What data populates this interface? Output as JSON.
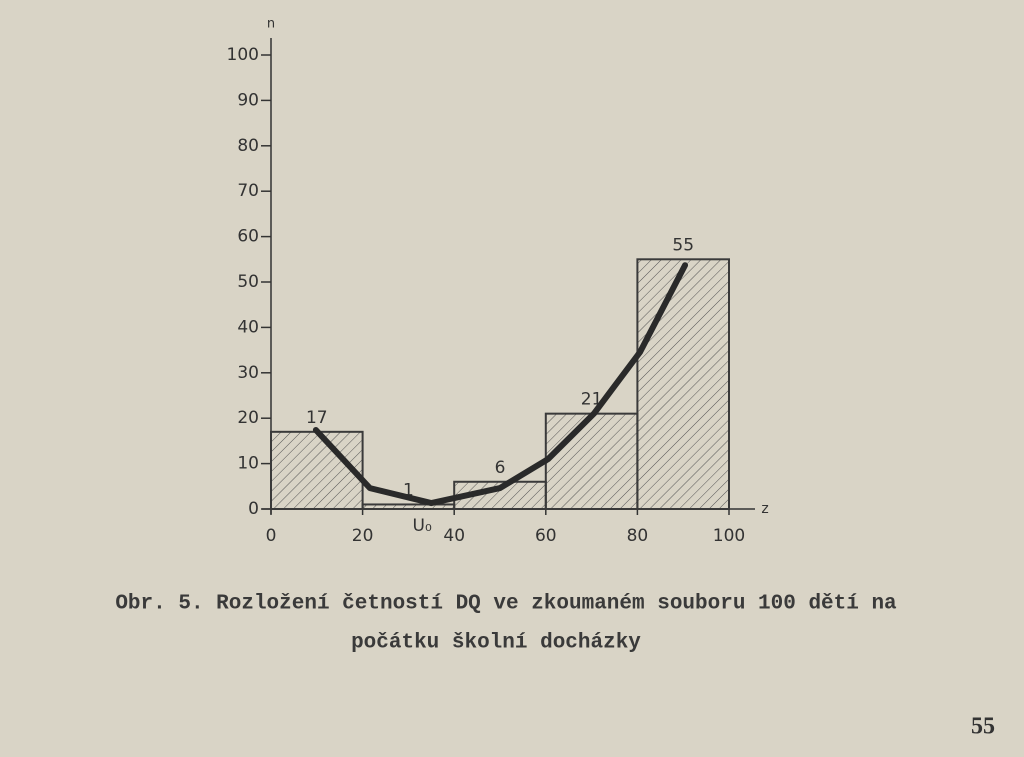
{
  "chart_data": {
    "type": "histogram",
    "y_label": "n",
    "x_label": "z",
    "bins": [
      0,
      20,
      40,
      60,
      80,
      100
    ],
    "values": [
      17,
      1,
      6,
      21,
      55
    ],
    "xlim": [
      0,
      100
    ],
    "xticks": [
      0,
      20,
      40,
      60,
      80,
      100
    ],
    "ylim": [
      0,
      100
    ],
    "yticks": [
      0,
      10,
      20,
      30,
      40,
      50,
      60,
      70,
      80,
      90,
      100
    ],
    "annotation": "U₀",
    "annotation_x": 33,
    "curve": {
      "x": [
        9.8,
        21.6,
        35,
        50,
        60.5,
        70.5,
        80.6,
        90.4
      ],
      "y": [
        17.4,
        4.6,
        1.3,
        4.6,
        11,
        21,
        34.6,
        53.7
      ]
    },
    "color": "#3a3a3a"
  },
  "caption": [
    "Obr. 5. Rozložení četností DQ ve zkoumaném souboru 100 dětí na",
    "počátku školní docházky"
  ],
  "page_number": "55"
}
